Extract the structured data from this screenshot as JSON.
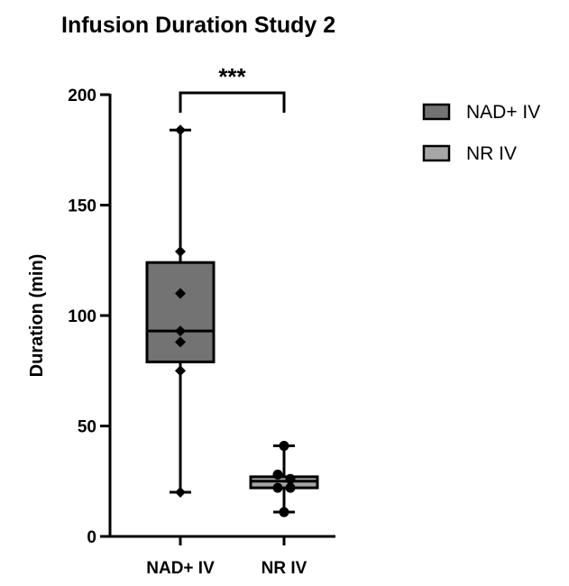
{
  "chart_data": {
    "type": "box",
    "title": "Infusion Duration Study 2",
    "xlabel": "",
    "ylabel": "Duration (min)",
    "ylim": [
      0,
      200
    ],
    "yticks": [
      0,
      50,
      100,
      150,
      200
    ],
    "yticks_labels": [
      "0",
      "50",
      "100",
      "150",
      "200"
    ],
    "categories": [
      "NAD+ IV",
      "NR IV"
    ],
    "series": [
      {
        "name": "NAD+ IV",
        "color": "#737373",
        "marker": "diamond",
        "box": {
          "min": 20,
          "q1": 79,
          "median": 93,
          "q3": 124,
          "max": 184
        },
        "points": [
          184,
          129,
          110,
          93,
          88,
          75,
          20
        ]
      },
      {
        "name": "NR IV",
        "color": "#a6a6a6",
        "marker": "circle",
        "box": {
          "min": 11,
          "q1": 22,
          "median": 25,
          "q3": 27,
          "max": 41
        },
        "points": [
          41,
          28,
          26,
          22,
          22,
          11
        ]
      }
    ],
    "significance": {
      "between": [
        "NAD+ IV",
        "NR IV"
      ],
      "label": "***"
    },
    "legend": {
      "placement": "top-right",
      "entries": [
        "NAD+ IV",
        "NR IV"
      ]
    },
    "grid": false
  }
}
